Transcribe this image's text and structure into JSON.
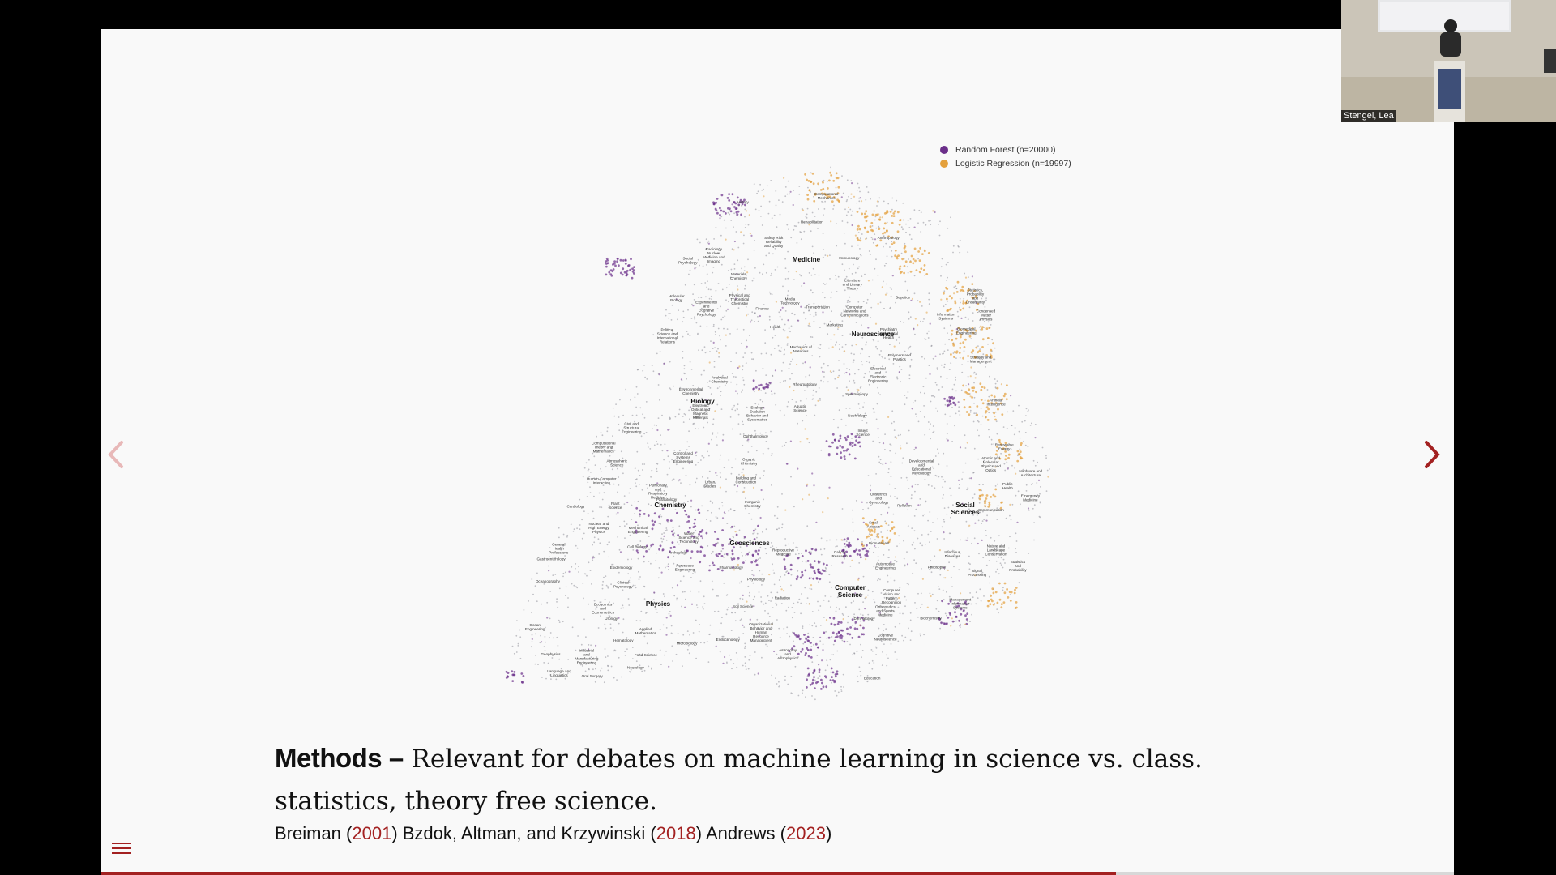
{
  "legend": {
    "items": [
      {
        "label": "Random Forest (n=20000)",
        "color": "#6b2f8a"
      },
      {
        "label": "Logistic Regression (n=19997)",
        "color": "#e4a03c"
      }
    ]
  },
  "map": {
    "major_labels": [
      "Medicine",
      "Neuroscience",
      "Biology",
      "Chemistry",
      "Geosciences",
      "Physics",
      "Computer Science",
      "Social Sciences"
    ],
    "minor_labels": [
      "Urology",
      "Obstetrics and Gynecology",
      "Cancer Research",
      "Reproductive Medicine",
      "Hematology",
      "Pulmonary and Respiratory Medicine",
      "Immunology",
      "Cell Biology",
      "Molecular Biology",
      "Genetics",
      "Epidemiology",
      "Pharmacology",
      "Microbiology",
      "Infectious Diseases",
      "Radiology Nuclear Medicine and Imaging",
      "Physiology",
      "Cardiology",
      "Emergency Medicine",
      "Rehabilitation",
      "Orthopedics and Sports Medicine",
      "Public Health",
      "Psychiatry and Mental Health",
      "Biochemistry",
      "Parasitology",
      "Small Animals",
      "Ophthalmology",
      "Oral Surgery",
      "Cognitive Neuroscience",
      "Plant Science",
      "Food Science",
      "Insect Science",
      "Aquatic Science",
      "Ecology Evolution Behavior and Systematics",
      "Nature and Landscape Conservation",
      "Health",
      "General Health Professions",
      "Clinical Psychology",
      "Developmental and Educational Psychology",
      "Experimental and Cognitive Psychology",
      "Social Psychology",
      "Language and Linguistics",
      "Literature and Literary Theory",
      "Education",
      "History",
      "Philosophy",
      "Anthropology",
      "Archeology",
      "Political Science and International Relations",
      "Law",
      "Communication",
      "Organizational Behavior and Human Resource Management",
      "Urban Studies",
      "Management Information Systems",
      "Information Systems",
      "Marketing",
      "Strategy and Management",
      "Finance",
      "Economics and Econometrics",
      "Analytical Chemistry",
      "Soil Science",
      "Environmental Chemistry",
      "Pollution",
      "Water Science and Technology",
      "Organic Chemistry",
      "Inorganic Chemistry",
      "Biomaterials",
      "Physical and Theoretical Chemistry",
      "Renewable Energy",
      "Atmospheric Science",
      "Oceanography",
      "Geophysics",
      "Biomedical Engineering",
      "Polymers and Plastics",
      "Spectroscopy",
      "Electronic Optical and Magnetic Materials",
      "Materials Chemistry",
      "Condensed Matter Physics",
      "Atomic and Molecular Physics and Optics",
      "Radiation",
      "Nuclear and High Energy Physics",
      "Astronomy and Astrophysics",
      "Ocean Engineering",
      "Computational Mechanics",
      "Aerospace Engineering",
      "Electrical and Electronic Engineering",
      "Mechanical Engineering",
      "Mechanics of Materials",
      "Civil and Structural Engineering",
      "Automotive Engineering",
      "Building and Construction",
      "Control and Systems Engineering",
      "Applied Mathematics",
      "Statistics and Probability",
      "Computational Theory and Mathematics",
      "Computer Networks and Communications",
      "Hardware and Architecture",
      "Industrial and Manufacturing Engineering",
      "Safety Risk Reliability and Quality",
      "Transportation",
      "Media Technology",
      "Computer Vision and Pattern Recognition",
      "Signal Processing",
      "Artificial Intelligence",
      "Statistics, Probability and Uncertainty",
      "Human-Computer Interaction",
      "Nephrology",
      "Dermatology",
      "Gastroenterology",
      "Endocrinology",
      "Rheumatology",
      "Neurology"
    ]
  },
  "caption": {
    "bold": "Methods –",
    "text": " Relevant for debates on machine learning in science vs. class. statistics, theory free science."
  },
  "refs": {
    "a_name": "Breiman (",
    "a_year": "2001",
    "a_close": ")",
    "b_name": " Bzdok, Altman, and Krzywinski (",
    "b_year": "2018",
    "b_close": ")",
    "c_name": " Andrews (",
    "c_year": "2023",
    "c_close": ")"
  },
  "progress": {
    "fraction": 0.75
  },
  "webcam": {
    "name": "Stengel, Lea"
  },
  "icons": {
    "prev": "chevron-left-icon",
    "next": "chevron-right-icon",
    "menu": "hamburger-menu-icon"
  },
  "colors": {
    "accent": "#a32121",
    "rf": "#6b2f8a",
    "lr": "#e4a03c"
  }
}
